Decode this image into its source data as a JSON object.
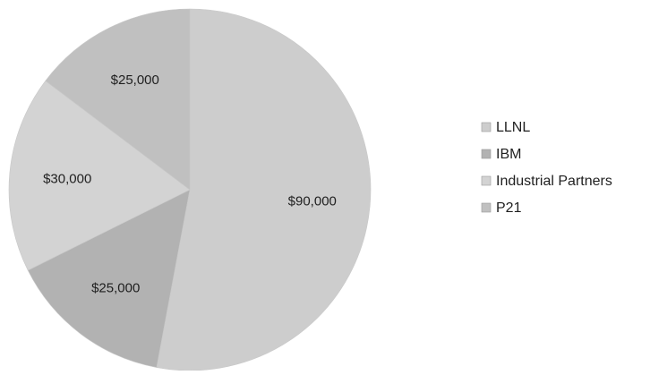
{
  "chart_data": {
    "type": "pie",
    "categories": [
      "LLNL",
      "IBM",
      "Industrial Partners",
      "P21"
    ],
    "values": [
      90000,
      25000,
      30000,
      25000
    ],
    "value_labels": [
      "$90,000",
      "$25,000",
      "$30,000",
      "$25,000"
    ],
    "colors": [
      "#cdcdcd",
      "#b2b2b2",
      "#d3d3d3",
      "#c0c0c0"
    ],
    "start_angle_deg": 0,
    "direction": "clockwise",
    "legend_position": "right"
  }
}
